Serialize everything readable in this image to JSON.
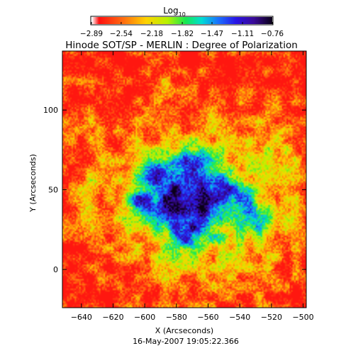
{
  "chart_data": {
    "type": "heatmap",
    "title": "Hinode SOT/SP - MERLIN : Degree of Polarization",
    "xlabel": "X (Arcseconds)",
    "ylabel": "Y (Arcseconds)",
    "footer": "16-May-2007 19:05:22.366",
    "xlim": [
      -652,
      -498
    ],
    "ylim": [
      -24,
      137
    ],
    "x_ticks": [
      -640,
      -620,
      -600,
      -580,
      -560,
      -540,
      -520,
      -500
    ],
    "x_tick_labels": [
      "−640",
      "−620",
      "−600",
      "−580",
      "−560",
      "−540",
      "−520",
      "−500"
    ],
    "y_ticks": [
      0,
      50,
      100
    ],
    "y_tick_labels": [
      "0",
      "50",
      "100"
    ],
    "colorbar": {
      "title": "Log",
      "title_subscript": "10",
      "range": [
        -2.89,
        -0.76
      ],
      "tick_values": [
        -2.89,
        -2.54,
        -2.18,
        -1.82,
        -1.47,
        -1.11,
        -0.76
      ],
      "tick_labels": [
        "−2.89",
        "−2.54",
        "−2.18",
        "−1.82",
        "−1.47",
        "−1.11",
        "−0.76"
      ],
      "colormap": [
        "#ffffff",
        "#ff1010",
        "#ff6a10",
        "#ffd200",
        "#b8f200",
        "#18e850",
        "#00ddd5",
        "#1a73ff",
        "#2814e6",
        "#3a0a96",
        "#0a0018"
      ],
      "colormap_positions": [
        0.0,
        0.04,
        0.17,
        0.3,
        0.42,
        0.52,
        0.61,
        0.7,
        0.8,
        0.9,
        1.0
      ]
    },
    "field": {
      "background_log": -2.8,
      "noise_amplitude": 0.35,
      "blobs": [
        {
          "x": -576,
          "y": 43,
          "sx": 18,
          "sy": 18,
          "amp": 0.95
        },
        {
          "x": -582,
          "y": 37,
          "sx": 8,
          "sy": 8,
          "amp": 0.55
        },
        {
          "x": -563,
          "y": 34,
          "sx": 7,
          "sy": 7,
          "amp": 0.5
        },
        {
          "x": -592,
          "y": 60,
          "sx": 8,
          "sy": 7,
          "amp": 0.8
        },
        {
          "x": -569,
          "y": 67,
          "sx": 8,
          "sy": 8,
          "amp": 0.85
        },
        {
          "x": -548,
          "y": 50,
          "sx": 8,
          "sy": 6,
          "amp": 0.9
        },
        {
          "x": -533,
          "y": 33,
          "sx": 9,
          "sy": 8,
          "amp": 0.75
        },
        {
          "x": -604,
          "y": 43,
          "sx": 6,
          "sy": 5,
          "amp": 0.8
        },
        {
          "x": -573,
          "y": 18,
          "sx": 6,
          "sy": 5,
          "amp": 0.6
        },
        {
          "x": -560,
          "y": 40,
          "sx": 45,
          "sy": 38,
          "amp": 0.7
        },
        {
          "x": -638,
          "y": 95,
          "sx": 10,
          "sy": 10,
          "amp": 0.35
        },
        {
          "x": -592,
          "y": 115,
          "sx": 6,
          "sy": 6,
          "amp": 0.4
        },
        {
          "x": -636,
          "y": 44,
          "sx": 5,
          "sy": 10,
          "amp": 0.5
        },
        {
          "x": -515,
          "y": 75,
          "sx": 10,
          "sy": 10,
          "amp": 0.3
        }
      ]
    }
  }
}
